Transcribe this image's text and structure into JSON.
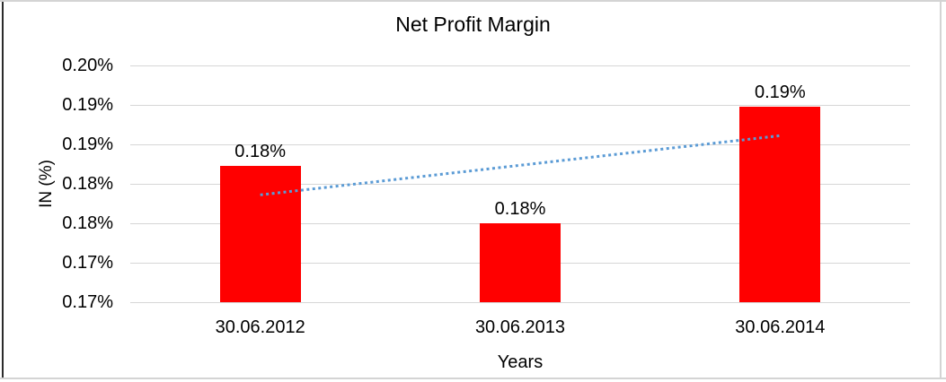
{
  "chart_data": {
    "type": "bar",
    "title": "Net Profit Margin",
    "xlabel": "Years",
    "ylabel": "IN (%)",
    "categories": [
      "30.06.2012",
      "30.06.2013",
      "30.06.2014"
    ],
    "values": [
      0.1823,
      0.175,
      0.1898
    ],
    "data_labels": [
      "0.18%",
      "0.18%",
      "0.19%"
    ],
    "unit": "%",
    "ylim": [
      0.165,
      0.195
    ],
    "y_tick_step": 0.005,
    "y_tick_labels_top_to_bottom": [
      "0.20%",
      "0.19%",
      "0.19%",
      "0.18%",
      "0.18%",
      "0.17%",
      "0.17%"
    ],
    "grid": true,
    "legend": "none",
    "bar_color": "#FF0000",
    "gridline_color": "#D6D6D6",
    "text_color": "#000000",
    "trendline": {
      "type": "linear",
      "style": "dotted",
      "color": "#5B9BD5",
      "start_value": 0.1786,
      "end_value": 0.1861
    }
  }
}
